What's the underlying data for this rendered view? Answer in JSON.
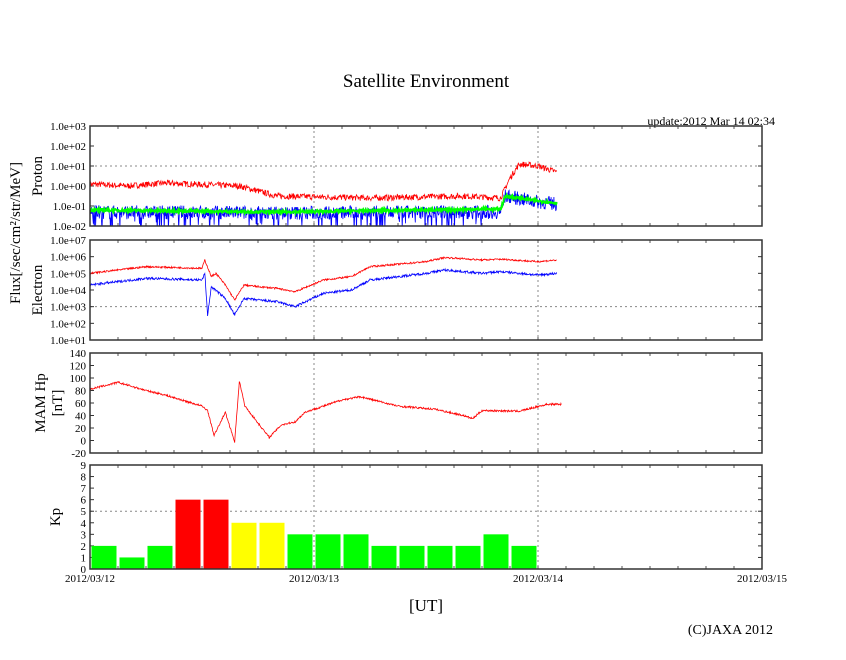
{
  "title": "Satellite Environment",
  "update": "update:2012 Mar 14 02:34",
  "xlabel": "[UT]",
  "copyright": "(C)JAXA 2012",
  "flux_label": "Flux[/sec/cm²/str/MeV]",
  "x_ticks": [
    "2012/03/12",
    "2012/03/13",
    "2012/03/14",
    "2012/03/15"
  ],
  "colors": {
    "red": "#ff0000",
    "blue": "#0000ff",
    "green": "#00ff00",
    "yellow": "#ffff00",
    "axis": "#333333"
  },
  "chart_data": [
    {
      "type": "line",
      "panel": "proton",
      "ylabel": "Proton",
      "yscale": "log",
      "ylim_log10": [
        -2,
        3
      ],
      "yticks": [
        "1.0e-02",
        "1.0e-01",
        "1.0e+00",
        "1.0e+01",
        "1.0e+02",
        "1.0e+03"
      ],
      "x_unit": "hours since 2012/03/12 00:00",
      "xlim": [
        0,
        72
      ],
      "series": [
        {
          "name": "proton-red",
          "color": "red",
          "noise": 0.15,
          "points_log10": [
            [
              0,
              0.1
            ],
            [
              4,
              0.0
            ],
            [
              8,
              0.15
            ],
            [
              16,
              0.0
            ],
            [
              20,
              -0.5
            ],
            [
              30,
              -0.6
            ],
            [
              40,
              -0.5
            ],
            [
              44,
              -0.6
            ],
            [
              45,
              0.4
            ],
            [
              46,
              1.1
            ],
            [
              48,
              1.0
            ],
            [
              50,
              0.7
            ]
          ]
        },
        {
          "name": "proton-blue",
          "color": "blue",
          "noise": 0.35,
          "points_log10": [
            [
              0,
              -1.3
            ],
            [
              20,
              -1.35
            ],
            [
              44,
              -1.3
            ],
            [
              44.5,
              -0.5
            ],
            [
              48,
              -0.8
            ],
            [
              50,
              -0.9
            ]
          ]
        },
        {
          "name": "proton-green",
          "color": "green",
          "noise": 0.06,
          "points_log10": [
            [
              0,
              -1.2
            ],
            [
              20,
              -1.3
            ],
            [
              44,
              -1.15
            ],
            [
              44.5,
              -0.5
            ],
            [
              48,
              -0.75
            ],
            [
              50,
              -0.85
            ]
          ]
        }
      ]
    },
    {
      "type": "line",
      "panel": "electron",
      "ylabel": "Electron",
      "yscale": "log",
      "ylim_log10": [
        1,
        7
      ],
      "yticks": [
        "1.0e+01",
        "1.0e+02",
        "1.0e+03",
        "1.0e+04",
        "1.0e+05",
        "1.0e+06",
        "1.0e+07"
      ],
      "xlim": [
        0,
        72
      ],
      "series": [
        {
          "name": "electron-red",
          "color": "red",
          "noise": 0.05,
          "points_log10": [
            [
              0,
              5.0
            ],
            [
              6,
              5.4
            ],
            [
              12,
              5.3
            ],
            [
              12.3,
              5.8
            ],
            [
              13,
              4.8
            ],
            [
              13.5,
              5.0
            ],
            [
              14.5,
              4.3
            ],
            [
              15.5,
              3.4
            ],
            [
              16.5,
              4.3
            ],
            [
              18,
              4.2
            ],
            [
              20,
              4.1
            ],
            [
              22,
              3.9
            ],
            [
              25,
              4.6
            ],
            [
              28,
              4.8
            ],
            [
              30,
              5.4
            ],
            [
              36,
              5.7
            ],
            [
              38,
              5.95
            ],
            [
              42,
              5.8
            ],
            [
              44,
              5.85
            ],
            [
              48,
              5.7
            ],
            [
              50,
              5.8
            ]
          ]
        },
        {
          "name": "electron-blue",
          "color": "blue",
          "noise": 0.07,
          "points_log10": [
            [
              0,
              4.3
            ],
            [
              6,
              4.7
            ],
            [
              12,
              4.6
            ],
            [
              12.3,
              5.0
            ],
            [
              12.6,
              2.5
            ],
            [
              13,
              4.2
            ],
            [
              14.5,
              3.5
            ],
            [
              15.5,
              2.5
            ],
            [
              16.5,
              3.5
            ],
            [
              18,
              3.4
            ],
            [
              20,
              3.3
            ],
            [
              22,
              3.0
            ],
            [
              25,
              3.8
            ],
            [
              28,
              4.0
            ],
            [
              30,
              4.6
            ],
            [
              36,
              5.0
            ],
            [
              38,
              5.2
            ],
            [
              42,
              5.0
            ],
            [
              44,
              5.1
            ],
            [
              48,
              4.9
            ],
            [
              50,
              5.0
            ]
          ]
        }
      ]
    },
    {
      "type": "line",
      "panel": "mam-hp",
      "ylabel": "MAM Hp [nT]",
      "ylim": [
        -20,
        140
      ],
      "yticks": [
        "-20",
        "0",
        "20",
        "40",
        "60",
        "80",
        "100",
        "120",
        "140"
      ],
      "xlim": [
        0,
        72
      ],
      "series": [
        {
          "name": "mam-hp",
          "color": "red",
          "noise": 1.5,
          "points": [
            [
              0,
              82
            ],
            [
              3,
              93
            ],
            [
              6,
              80
            ],
            [
              8,
              73
            ],
            [
              12,
              55
            ],
            [
              12.6,
              48
            ],
            [
              13.3,
              8
            ],
            [
              14.5,
              45
            ],
            [
              15.5,
              -2
            ],
            [
              16,
              95
            ],
            [
              16.6,
              55
            ],
            [
              18,
              28
            ],
            [
              19.2,
              5
            ],
            [
              20.5,
              25
            ],
            [
              22,
              30
            ],
            [
              23,
              45
            ],
            [
              27,
              65
            ],
            [
              29,
              70
            ],
            [
              33,
              55
            ],
            [
              37,
              50
            ],
            [
              40,
              40
            ],
            [
              41,
              35
            ],
            [
              42,
              48
            ],
            [
              46,
              47
            ],
            [
              49,
              58
            ],
            [
              50.5,
              58
            ]
          ]
        }
      ]
    },
    {
      "type": "bar",
      "panel": "kp",
      "ylabel": "Kp",
      "ylim": [
        0,
        9
      ],
      "yticks": [
        "0",
        "1",
        "2",
        "3",
        "4",
        "5",
        "6",
        "7",
        "8",
        "9"
      ],
      "bin_hours": 3,
      "threshold": 5,
      "values": [
        2,
        1,
        2,
        6,
        6,
        4,
        4,
        3,
        3,
        3,
        2,
        2,
        2,
        2,
        3,
        2
      ]
    }
  ]
}
